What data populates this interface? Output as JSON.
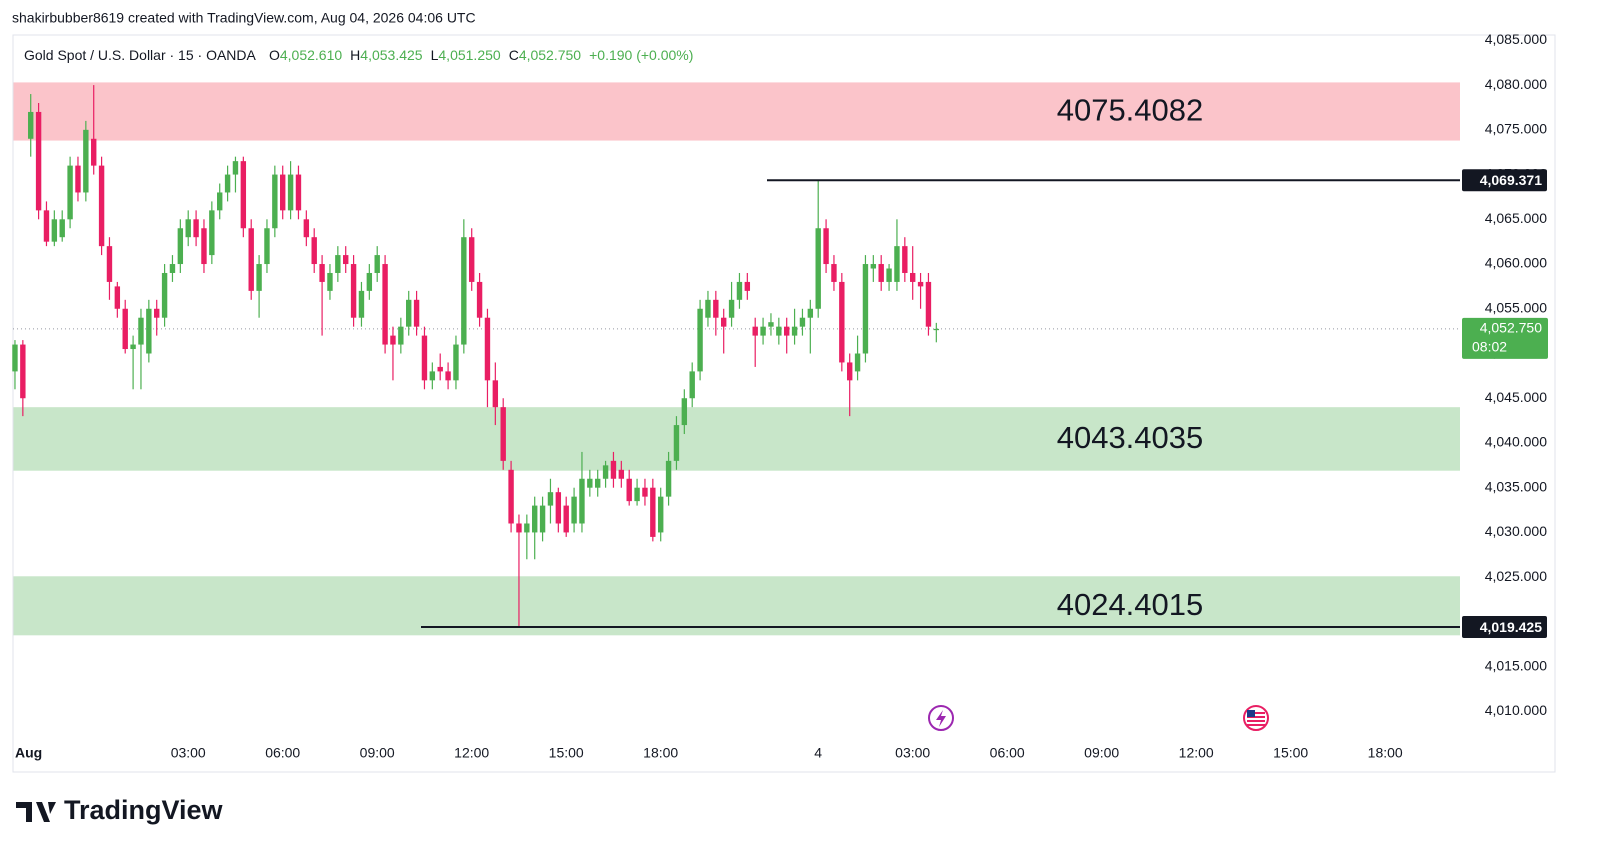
{
  "header": "shakirbubber8619 created with TradingView.com, Aug 04, 2026 04:06 UTC",
  "brand": "TradingView",
  "chart_data": {
    "type": "candlestick",
    "title": "Gold Spot / U.S. Dollar · 15 · OANDA",
    "legend": [
      {
        "key": "O",
        "value": "4,052.610"
      },
      {
        "key": "H",
        "value": "4,053.425"
      },
      {
        "key": "L",
        "value": "4,051.250"
      },
      {
        "key": "C",
        "value": "4,052.750"
      }
    ],
    "change": "+0.190 (+0.00%)",
    "up_color": "#4caf50",
    "down_color": "#e91e63",
    "candles": [
      [
        4048,
        4051.5,
        4046,
        4051
      ],
      [
        4051,
        4051.5,
        4043,
        4045
      ],
      [
        4074,
        4079,
        4072,
        4077
      ],
      [
        4077,
        4078,
        4065,
        4066
      ],
      [
        4066,
        4067,
        4062,
        4062.5
      ],
      [
        4062.5,
        4066,
        4062,
        4065
      ],
      [
        4063,
        4066,
        4062.5,
        4065
      ],
      [
        4065,
        4072,
        4064,
        4071
      ],
      [
        4071,
        4072,
        4067,
        4068
      ],
      [
        4068,
        4076,
        4067,
        4075
      ],
      [
        4074,
        4080,
        4070,
        4071
      ],
      [
        4071,
        4072,
        4061,
        4062
      ],
      [
        4062,
        4063,
        4056,
        4058
      ],
      [
        4057.5,
        4058,
        4054,
        4055
      ],
      [
        4055,
        4056,
        4050,
        4050.5
      ],
      [
        4050.5,
        4052,
        4046,
        4051
      ],
      [
        4051,
        4055,
        4046,
        4054
      ],
      [
        4050,
        4056,
        4049,
        4055
      ],
      [
        4055,
        4056,
        4052,
        4054
      ],
      [
        4054,
        4060,
        4053,
        4059
      ],
      [
        4059,
        4061,
        4058,
        4060
      ],
      [
        4060,
        4065,
        4059,
        4064
      ],
      [
        4063,
        4066,
        4062,
        4065
      ],
      [
        4065,
        4066,
        4062,
        4063
      ],
      [
        4064,
        4065,
        4059,
        4060
      ],
      [
        4061,
        4067,
        4060,
        4066
      ],
      [
        4066,
        4069,
        4065,
        4068
      ],
      [
        4068,
        4071,
        4067,
        4070
      ],
      [
        4070,
        4072,
        4068,
        4071.5
      ],
      [
        4071.5,
        4072,
        4063,
        4064
      ],
      [
        4064,
        4065,
        4056,
        4057
      ],
      [
        4057,
        4061,
        4054,
        4060
      ],
      [
        4060,
        4065,
        4059,
        4064
      ],
      [
        4064,
        4071,
        4063,
        4070
      ],
      [
        4070,
        4071,
        4065,
        4066
      ],
      [
        4066,
        4071.5,
        4065,
        4070
      ],
      [
        4070,
        4071,
        4065,
        4066
      ],
      [
        4065,
        4066,
        4062,
        4063
      ],
      [
        4063,
        4064,
        4059,
        4060
      ],
      [
        4060,
        4061,
        4052,
        4058
      ],
      [
        4057,
        4060,
        4056,
        4059
      ],
      [
        4059,
        4062,
        4058,
        4061
      ],
      [
        4061,
        4062,
        4059,
        4060
      ],
      [
        4060,
        4061,
        4053,
        4054
      ],
      [
        4054,
        4058,
        4053,
        4057
      ],
      [
        4057,
        4060,
        4056,
        4059
      ],
      [
        4059,
        4062,
        4058,
        4061
      ],
      [
        4060,
        4061,
        4050,
        4051
      ],
      [
        4052,
        4053,
        4047,
        4051
      ],
      [
        4051,
        4054,
        4050,
        4053
      ],
      [
        4053,
        4057,
        4052,
        4056
      ],
      [
        4056,
        4057,
        4052,
        4053
      ],
      [
        4052,
        4053,
        4046,
        4047
      ],
      [
        4047,
        4049,
        4046,
        4048
      ],
      [
        4048.5,
        4050,
        4047,
        4048
      ],
      [
        4048,
        4049,
        4046,
        4047
      ],
      [
        4047,
        4052,
        4046,
        4051
      ],
      [
        4051,
        4065,
        4050,
        4063
      ],
      [
        4063,
        4064,
        4057,
        4058
      ],
      [
        4058,
        4059,
        4053,
        4054
      ],
      [
        4054,
        4055,
        4044,
        4047
      ],
      [
        4047,
        4049,
        4042,
        4044
      ],
      [
        4044,
        4045,
        4037,
        4038
      ],
      [
        4037,
        4038,
        4030,
        4031
      ],
      [
        4031,
        4032,
        4019.425,
        4030
      ],
      [
        4030,
        4032,
        4027,
        4031
      ],
      [
        4030,
        4034,
        4027,
        4033
      ],
      [
        4030,
        4034,
        4029,
        4033
      ],
      [
        4033,
        4036,
        4031,
        4034.5
      ],
      [
        4034.5,
        4035,
        4030,
        4031
      ],
      [
        4033,
        4034,
        4029.5,
        4030
      ],
      [
        4031,
        4035,
        4030,
        4034
      ],
      [
        4031,
        4039,
        4030,
        4036
      ],
      [
        4035,
        4037,
        4034,
        4036
      ],
      [
        4035,
        4037,
        4034,
        4036
      ],
      [
        4036,
        4038,
        4035,
        4037.5
      ],
      [
        4038,
        4039,
        4035,
        4036
      ],
      [
        4037,
        4038,
        4035,
        4036
      ],
      [
        4036,
        4037,
        4033,
        4033.5
      ],
      [
        4033.5,
        4036,
        4033,
        4035
      ],
      [
        4035,
        4036,
        4033,
        4034
      ],
      [
        4035,
        4036,
        4029,
        4029.5
      ],
      [
        4030,
        4035,
        4029,
        4034
      ],
      [
        4034,
        4039,
        4033,
        4038
      ],
      [
        4038,
        4043,
        4037,
        4042
      ],
      [
        4042,
        4046,
        4041,
        4045
      ],
      [
        4045,
        4049,
        4044,
        4048
      ],
      [
        4048,
        4056,
        4047,
        4055
      ],
      [
        4054,
        4057,
        4053,
        4056
      ],
      [
        4056,
        4057,
        4052,
        4054
      ],
      [
        4054,
        4055,
        4050,
        4053
      ],
      [
        4054,
        4058,
        4053,
        4056
      ],
      [
        4056,
        4059,
        4055,
        4058
      ],
      [
        4058,
        4059,
        4056,
        4057
      ],
      [
        4053,
        4054,
        4048.5,
        4052
      ],
      [
        4052,
        4054,
        4051,
        4053
      ],
      [
        4053,
        4054.5,
        4052,
        4053.5
      ],
      [
        4052,
        4054,
        4051,
        4053
      ],
      [
        4053,
        4054,
        4050,
        4052
      ],
      [
        4052,
        4055,
        4051,
        4053
      ],
      [
        4053,
        4055,
        4052,
        4054
      ],
      [
        4054,
        4056,
        4050,
        4055
      ],
      [
        4055,
        4069.371,
        4054,
        4064
      ],
      [
        4064,
        4065,
        4059,
        4060
      ],
      [
        4060,
        4061,
        4057,
        4058
      ],
      [
        4058,
        4059,
        4048,
        4049
      ],
      [
        4049,
        4050,
        4043,
        4047
      ],
      [
        4048,
        4052,
        4047,
        4050
      ],
      [
        4050,
        4061,
        4049,
        4060
      ],
      [
        4059.5,
        4061,
        4058,
        4060
      ],
      [
        4060,
        4061,
        4057,
        4058
      ],
      [
        4058,
        4060,
        4057,
        4059.5
      ],
      [
        4058,
        4065,
        4057,
        4062
      ],
      [
        4062,
        4063,
        4058,
        4059
      ],
      [
        4059,
        4062,
        4056,
        4058
      ],
      [
        4058,
        4059,
        4055,
        4057.5
      ],
      [
        4058,
        4059,
        4052,
        4053
      ],
      [
        4052.61,
        4053.425,
        4051.25,
        4052.75
      ]
    ],
    "xlim": [
      -0.25,
      183.5
    ],
    "xticks": [
      {
        "value": 0,
        "label": "Aug"
      },
      {
        "value": 22,
        "label": "03:00"
      },
      {
        "value": 34,
        "label": "06:00"
      },
      {
        "value": 46,
        "label": "09:00"
      },
      {
        "value": 58,
        "label": "12:00"
      },
      {
        "value": 70,
        "label": "15:00"
      },
      {
        "value": 82,
        "label": "18:00"
      },
      {
        "value": 102,
        "label": "4"
      },
      {
        "value": 114,
        "label": "03:00"
      },
      {
        "value": 126,
        "label": "06:00"
      },
      {
        "value": 138,
        "label": "09:00"
      },
      {
        "value": 150,
        "label": "12:00"
      },
      {
        "value": 162,
        "label": "15:00"
      },
      {
        "value": 174,
        "label": "18:00"
      }
    ],
    "ylim": [
      4006.8,
      4085.6
    ],
    "yticks": [
      {
        "value": 4010,
        "label": "4,010.000"
      },
      {
        "value": 4015,
        "label": "4,015.000"
      },
      {
        "value": 4020,
        "label": "4,020.000"
      },
      {
        "value": 4025,
        "label": "4,025.000"
      },
      {
        "value": 4030,
        "label": "4,030.000"
      },
      {
        "value": 4035,
        "label": "4,035.000"
      },
      {
        "value": 4040,
        "label": "4,040.000"
      },
      {
        "value": 4045,
        "label": "4,045.000"
      },
      {
        "value": 4050,
        "label": "4,050.000"
      },
      {
        "value": 4055,
        "label": "4,055.000"
      },
      {
        "value": 4060,
        "label": "4,060.000"
      },
      {
        "value": 4065,
        "label": "4,065.000"
      },
      {
        "value": 4070,
        "label": "4,070.000"
      },
      {
        "value": 4075,
        "label": "4,075.000"
      },
      {
        "value": 4080,
        "label": "4,080.000"
      },
      {
        "value": 4085,
        "label": "4,085.000"
      }
    ],
    "zones": [
      {
        "label": "4075.4082",
        "top": 4080.3,
        "bottom": 4073.8,
        "color": "#fbc4ca"
      },
      {
        "label": "4043.4035",
        "top": 4044.0,
        "bottom": 4036.9,
        "color": "#c8e6c9"
      },
      {
        "label": "4024.4015",
        "top": 4025.1,
        "bottom": 4018.5,
        "color": "#c8e6c9"
      }
    ],
    "levels": [
      {
        "value": 4069.371,
        "label": "4,069.371"
      },
      {
        "value": 4019.425,
        "label": "4,019.425"
      }
    ],
    "price_tag": {
      "value": 4052.75,
      "label": "4,052.750",
      "countdown": "08:02"
    }
  }
}
